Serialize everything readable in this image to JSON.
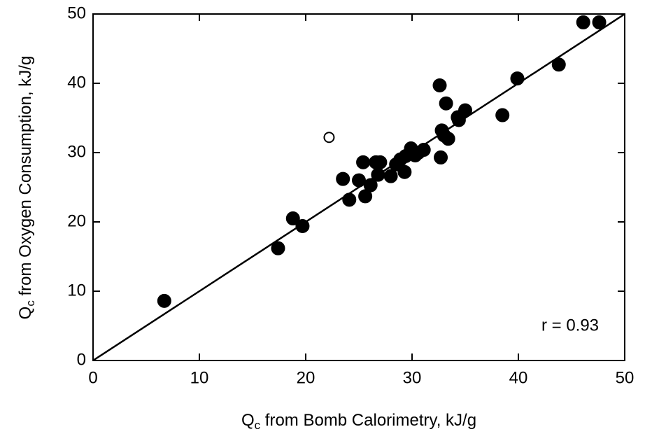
{
  "chart_data": {
    "type": "scatter",
    "xlabel": [
      "Q",
      "c",
      " from Bomb Calorimetry, kJ/g"
    ],
    "ylabel": [
      "Q",
      "c",
      " from Oxygen Consumption, kJ/g"
    ],
    "annotation": "r = 0.93",
    "xlim": [
      0,
      50
    ],
    "ylim": [
      0,
      50
    ],
    "xticks": [
      0,
      10,
      20,
      30,
      40,
      50
    ],
    "yticks": [
      0,
      10,
      20,
      30,
      40,
      50
    ],
    "line": {
      "x": [
        0,
        50
      ],
      "y": [
        0,
        50
      ],
      "color": "#000000"
    },
    "series": [
      {
        "marker": "filled",
        "color": "#000000",
        "x": [
          6.7,
          17.4,
          18.8,
          19.7,
          23.5,
          24.1,
          25.0,
          25.4,
          25.6,
          26.1,
          26.6,
          26.8,
          27.0,
          28.0,
          28.5,
          28.9,
          29.3,
          29.4,
          29.9,
          30.3,
          30.6,
          31.1,
          32.7,
          32.8,
          33.0,
          33.2,
          33.4,
          32.6,
          34.3,
          34.4,
          35.0,
          38.5,
          39.9,
          43.8,
          46.1,
          47.6
        ],
        "values": [
          8.6,
          16.2,
          20.5,
          19.4,
          26.2,
          23.2,
          26.0,
          28.6,
          23.7,
          25.3,
          28.6,
          26.8,
          28.6,
          26.6,
          28.3,
          29.0,
          27.2,
          29.5,
          30.6,
          29.6,
          30.0,
          30.4,
          29.3,
          33.2,
          32.5,
          37.1,
          32.0,
          39.7,
          35.1,
          34.7,
          36.1,
          35.4,
          40.7,
          42.7,
          48.8,
          48.8
        ]
      },
      {
        "marker": "open",
        "color": "#000000",
        "x": [
          22.2
        ],
        "values": [
          32.2
        ]
      }
    ]
  }
}
